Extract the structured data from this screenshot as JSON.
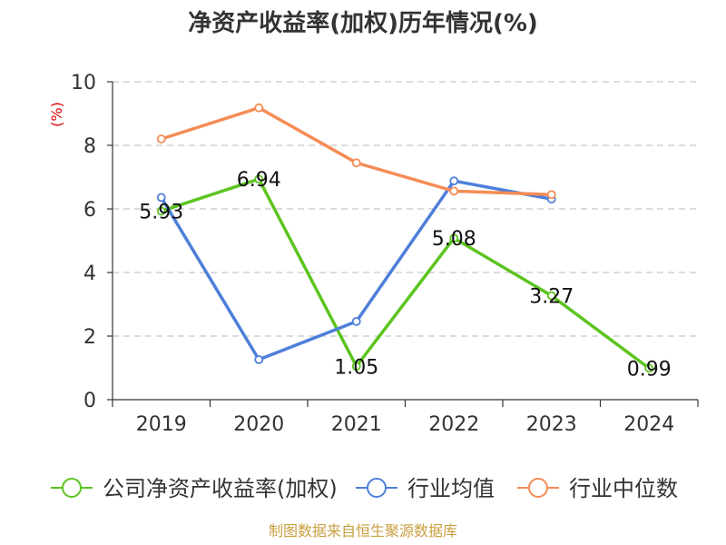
{
  "chart_data": {
    "type": "line",
    "title": "净资产收益率(加权)历年情况(%)",
    "y_unit_label": "(%)",
    "categories": [
      "2019",
      "2020",
      "2021",
      "2022",
      "2023",
      "2024"
    ],
    "ylim": [
      0,
      10
    ],
    "yticks": [
      0,
      2,
      4,
      6,
      8,
      10
    ],
    "grid": true,
    "legend_position": "bottom",
    "series": [
      {
        "name": "公司净资产收益率(加权)",
        "color": "#5cc41f",
        "values": [
          5.93,
          6.94,
          1.05,
          5.08,
          3.27,
          0.99
        ],
        "data_labels": [
          "5.93",
          "6.94",
          "1.05",
          "5.08",
          "3.27",
          "0.99"
        ]
      },
      {
        "name": "行业均值",
        "color": "#4e7fd9",
        "values": [
          6.36,
          1.26,
          2.46,
          6.88,
          6.31,
          null
        ]
      },
      {
        "name": "行业中位数",
        "color": "#f58c56",
        "values": [
          8.2,
          9.18,
          7.45,
          6.56,
          6.45,
          null
        ]
      }
    ]
  },
  "footer": {
    "source": "制图数据来自恒生聚源数据库"
  }
}
